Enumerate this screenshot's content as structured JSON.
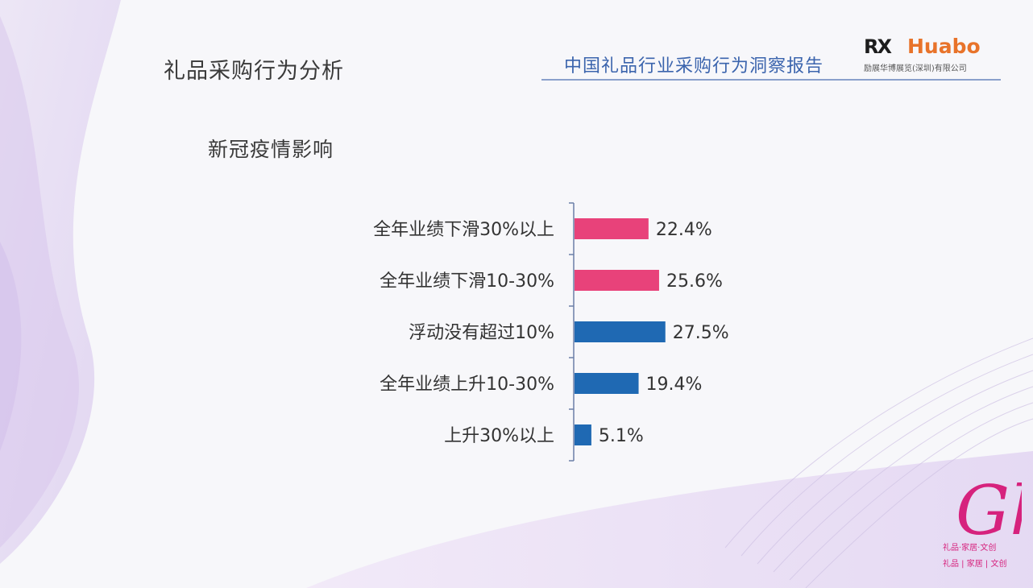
{
  "header": {
    "page_title": "礼品采购行为分析",
    "report_title": "中国礼品行业采购行为洞察报告",
    "brand": {
      "mark": "RX",
      "name": "Huabo",
      "subtitle": "励展华博展览(深圳)有限公司"
    }
  },
  "section": {
    "title": "新冠疫情影响"
  },
  "colors": {
    "decline": "#e8427a",
    "neutral_rise": "#1f69b3",
    "report_title": "#3b64ad",
    "brand_orange": "#e8732a"
  },
  "chart_data": {
    "type": "bar",
    "orientation": "horizontal",
    "categories": [
      "全年业绩下滑30%以上",
      "全年业绩下滑10-30%",
      "浮动没有超过10%",
      "全年业绩上升10-30%",
      "上升30%以上"
    ],
    "values": [
      22.4,
      25.6,
      27.5,
      19.4,
      5.1
    ],
    "value_labels": [
      "22.4%",
      "25.6%",
      "27.5%",
      "19.4%",
      "5.1%"
    ],
    "bar_colors": [
      "#e8427a",
      "#e8427a",
      "#1f69b3",
      "#1f69b3",
      "#1f69b3"
    ],
    "unit": "%",
    "xlim": [
      0,
      40
    ],
    "grid": false,
    "legend": "none"
  },
  "corner_logo": {
    "mark": "Gh",
    "line1": "礼品·家居·文创",
    "line2": "礼品 | 家居 | 文创"
  }
}
